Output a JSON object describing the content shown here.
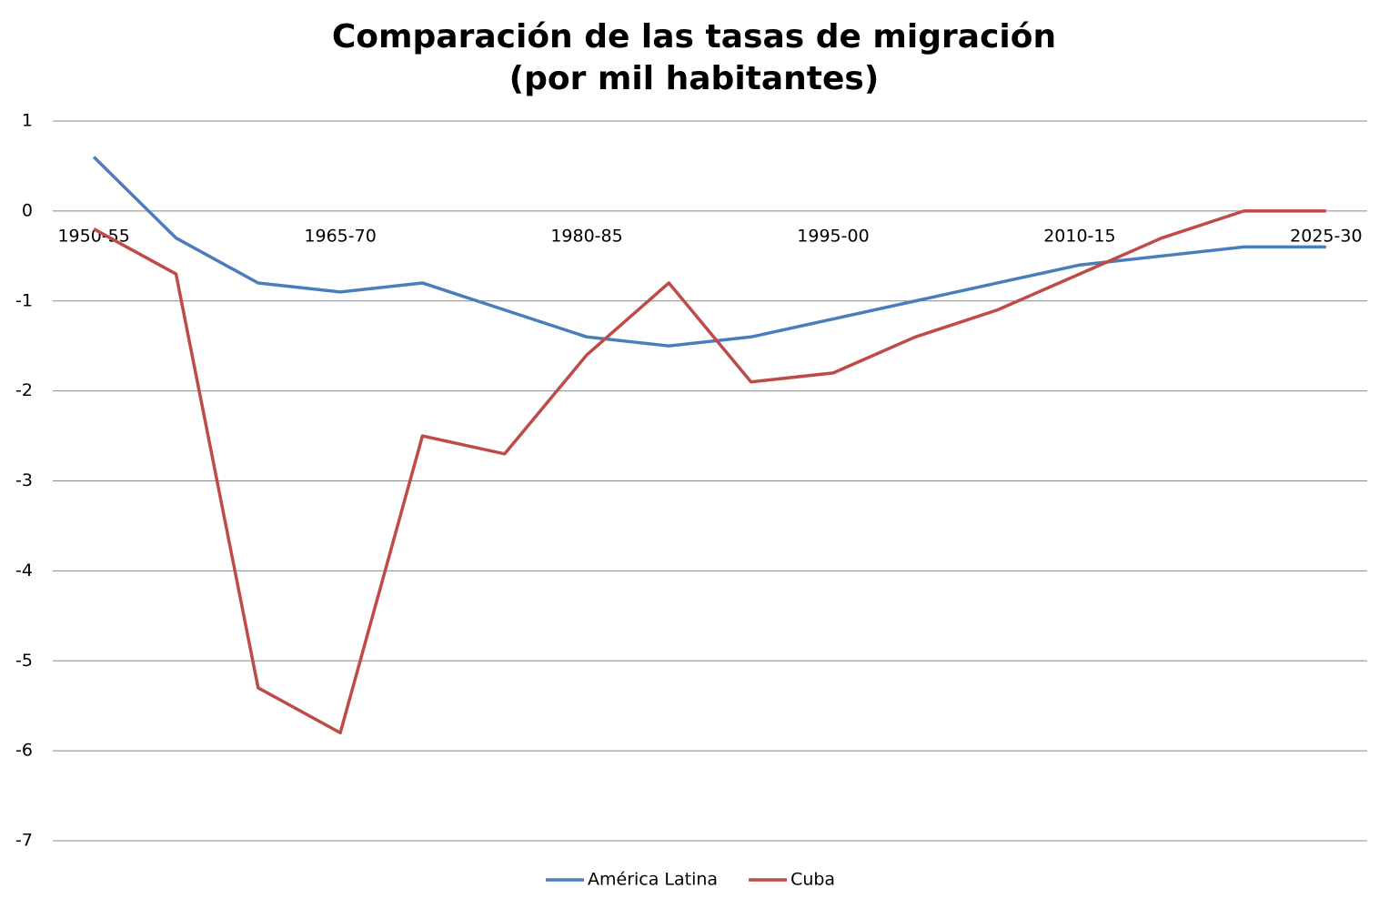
{
  "chart_data": {
    "type": "line",
    "title": [
      "Comparación de las tasas de migración",
      "(por mil habitantes)"
    ],
    "categories": [
      "1950-55",
      null,
      null,
      "1965-70",
      null,
      null,
      "1980-85",
      null,
      null,
      "1995-00",
      null,
      null,
      "2010-15",
      null,
      null,
      "2025-30"
    ],
    "series": [
      {
        "name": "América Latina",
        "color": "#4a7ebb",
        "values": [
          0.6,
          -0.3,
          -0.8,
          -0.9,
          -0.8,
          -1.1,
          -1.4,
          -1.5,
          -1.4,
          -1.2,
          -1.0,
          -0.8,
          -0.6,
          -0.5,
          -0.4,
          -0.4
        ]
      },
      {
        "name": "Cuba",
        "color": "#be4b48",
        "values": [
          -0.2,
          -0.7,
          -5.3,
          -5.8,
          -2.5,
          -2.7,
          -1.6,
          -0.8,
          -1.9,
          -1.8,
          -1.4,
          -1.1,
          -0.7,
          -0.3,
          0,
          0
        ]
      }
    ],
    "ylim": [
      -7,
      1
    ],
    "yticks": [
      1,
      0,
      -1,
      -2,
      -3,
      -4,
      -5,
      -6,
      -7
    ],
    "grid": true,
    "legend": "bottom"
  }
}
